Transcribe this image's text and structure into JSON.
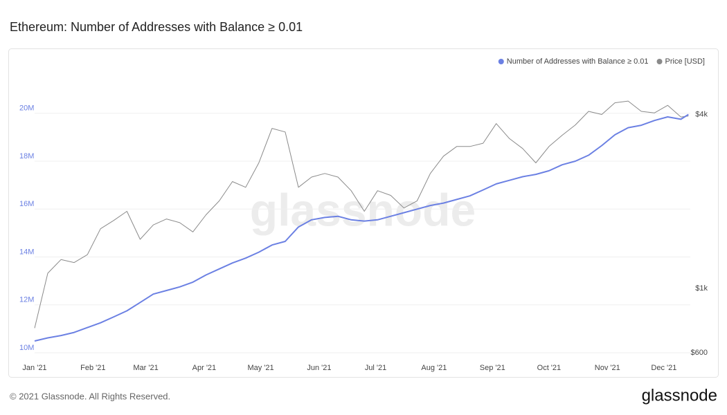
{
  "chart_data": {
    "type": "line",
    "title": "Ethereum: Number of Addresses with Balance ≥ 0.01",
    "watermark": "glassnode",
    "x": [
      0,
      7,
      14,
      21,
      28,
      35,
      42,
      49,
      56,
      63,
      70,
      77,
      84,
      91,
      98,
      105,
      112,
      119,
      126,
      133,
      140,
      147,
      154,
      161,
      168,
      175,
      182,
      189,
      196,
      203,
      210,
      217,
      224,
      231,
      238,
      245,
      252,
      259,
      266,
      273,
      280,
      287,
      294,
      301,
      308,
      315,
      322,
      329,
      336,
      343,
      347
    ],
    "xlim": [
      0,
      348
    ],
    "xticks": [
      {
        "value": 0,
        "label": "Jan '21"
      },
      {
        "value": 31,
        "label": "Feb '21"
      },
      {
        "value": 59,
        "label": "Mar '21"
      },
      {
        "value": 90,
        "label": "Apr '21"
      },
      {
        "value": 120,
        "label": "May '21"
      },
      {
        "value": 151,
        "label": "Jun '21"
      },
      {
        "value": 181,
        "label": "Jul '21"
      },
      {
        "value": 212,
        "label": "Aug '21"
      },
      {
        "value": 243,
        "label": "Sep '21"
      },
      {
        "value": 273,
        "label": "Oct '21"
      },
      {
        "value": 304,
        "label": "Nov '21"
      },
      {
        "value": 334,
        "label": "Dec '21"
      }
    ],
    "ylim": [
      10000000,
      21900000
    ],
    "yticks": [
      {
        "value": 10000000,
        "label": "10M"
      },
      {
        "value": 12000000,
        "label": "12M"
      },
      {
        "value": 14000000,
        "label": "14M"
      },
      {
        "value": 16000000,
        "label": "16M"
      },
      {
        "value": 18000000,
        "label": "18M"
      },
      {
        "value": 20000000,
        "label": "20M"
      }
    ],
    "y2lim": [
      600,
      5800
    ],
    "y2log": true,
    "y2ticks": [
      {
        "value": 600,
        "label": "$600"
      },
      {
        "value": 1000,
        "label": "$1k"
      },
      {
        "value": 4000,
        "label": "$4k"
      }
    ],
    "grid": true,
    "legend": "top-right",
    "series": [
      {
        "name": "Number of Addresses with Balance ≥ 0.01",
        "color": "#6b80e3",
        "values": [
          10490000,
          10620000,
          10720000,
          10850000,
          11050000,
          11250000,
          11500000,
          11750000,
          12100000,
          12450000,
          12600000,
          12750000,
          12950000,
          13250000,
          13500000,
          13750000,
          13950000,
          14200000,
          14500000,
          14650000,
          15250000,
          15550000,
          15650000,
          15700000,
          15550000,
          15500000,
          15550000,
          15700000,
          15850000,
          16000000,
          16150000,
          16250000,
          16400000,
          16550000,
          16800000,
          17050000,
          17200000,
          17350000,
          17450000,
          17600000,
          17850000,
          18000000,
          18250000,
          18650000,
          19100000,
          19400000,
          19500000,
          19700000,
          19850000,
          19750000,
          19950000
        ]
      },
      {
        "name": "Price [USD]",
        "color": "#8a8a8a",
        "axis": "y2",
        "values": [
          730,
          1130,
          1260,
          1230,
          1310,
          1610,
          1720,
          1850,
          1480,
          1660,
          1740,
          1690,
          1570,
          1800,
          2010,
          2345,
          2240,
          2720,
          3580,
          3480,
          2240,
          2430,
          2500,
          2430,
          2180,
          1850,
          2180,
          2100,
          1900,
          2010,
          2500,
          2870,
          3100,
          3100,
          3180,
          3720,
          3300,
          3050,
          2720,
          3100,
          3390,
          3680,
          4100,
          4000,
          4390,
          4450,
          4100,
          4050,
          4300,
          3920,
          3950
        ]
      }
    ]
  },
  "footer": {
    "copyright": "© 2021 Glassnode. All Rights Reserved.",
    "logo": "glassnode"
  }
}
